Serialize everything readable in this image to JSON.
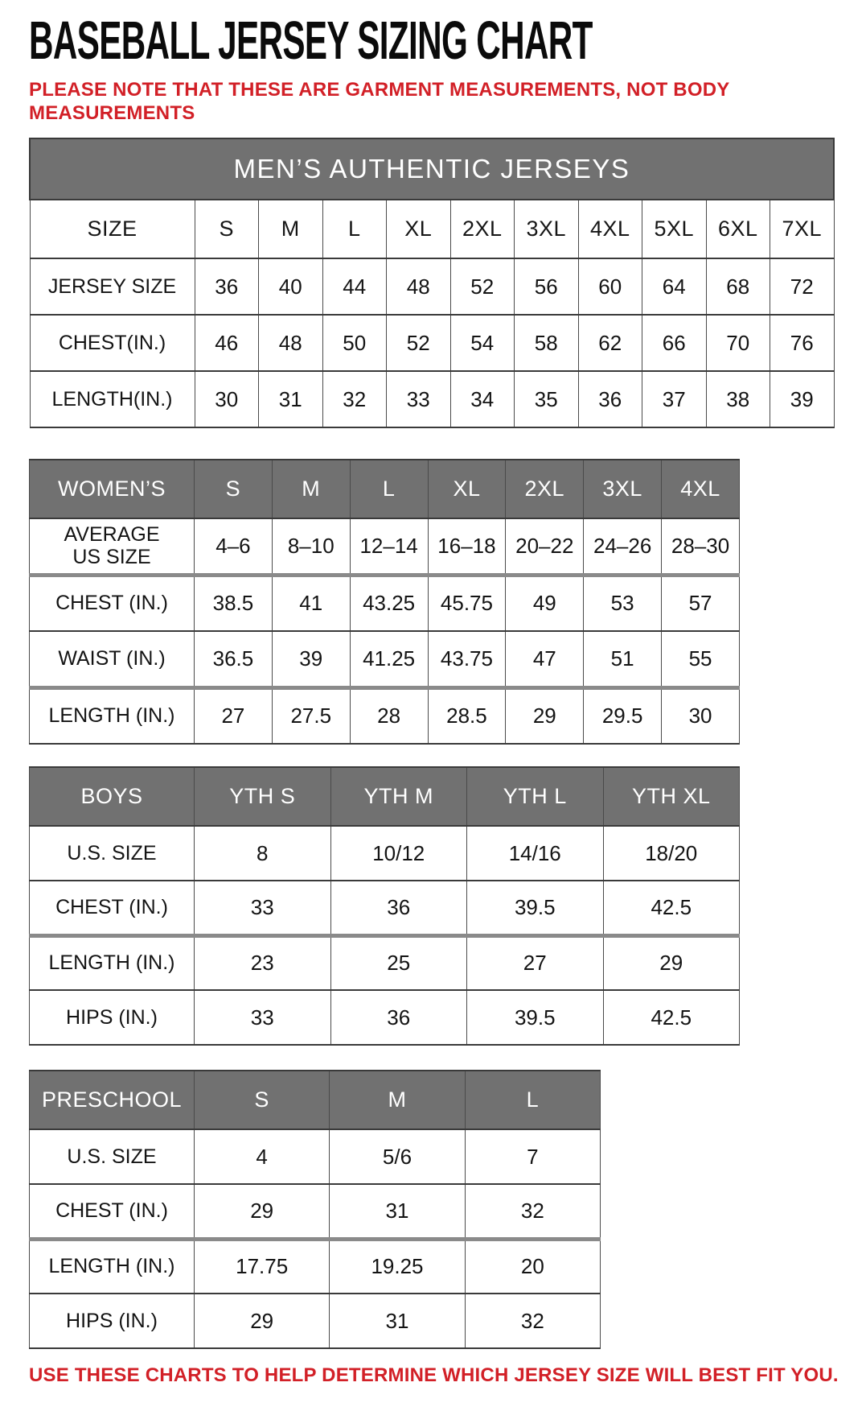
{
  "page": {
    "title": "BASEBALL JERSEY SIZING CHART",
    "note": "PLEASE NOTE THAT THESE ARE GARMENT MEASUREMENTS, NOT BODY MEASUREMENTS",
    "footer": "USE THESE CHARTS TO HELP DETERMINE WHICH JERSEY SIZE WILL BEST FIT YOU."
  },
  "colors": {
    "accent-red": "#d22027",
    "header-gray": "#717171",
    "text-black": "#161616",
    "border-dark": "#3a3a3a",
    "divider-gray": "#8a8a8a"
  },
  "tables": [
    {
      "id": "mens",
      "banner": "MEN’S AUTHENTIC JERSEYS",
      "header": {
        "label": "SIZE",
        "columns": [
          "S",
          "M",
          "L",
          "XL",
          "2XL",
          "3XL",
          "4XL",
          "5XL",
          "6XL",
          "7XL"
        ]
      },
      "rows": [
        {
          "label": "JERSEY SIZE",
          "values": [
            "36",
            "40",
            "44",
            "48",
            "52",
            "56",
            "60",
            "64",
            "68",
            "72"
          ]
        },
        {
          "label": "CHEST(IN.)",
          "values": [
            "46",
            "48",
            "50",
            "52",
            "54",
            "58",
            "62",
            "66",
            "70",
            "76"
          ]
        },
        {
          "label": "LENGTH(IN.)",
          "values": [
            "30",
            "31",
            "32",
            "33",
            "34",
            "35",
            "36",
            "37",
            "38",
            "39"
          ]
        }
      ]
    },
    {
      "id": "womens",
      "header": {
        "label": "WOMEN’S",
        "columns": [
          "S",
          "M",
          "L",
          "XL",
          "2XL",
          "3XL",
          "4XL"
        ]
      },
      "rows": [
        {
          "label": "AVERAGE\nUS SIZE",
          "values": [
            "4–6",
            "8–10",
            "12–14",
            "16–18",
            "20–22",
            "24–26",
            "28–30"
          ]
        },
        {
          "label": "CHEST (IN.)",
          "values": [
            "38.5",
            "41",
            "43.25",
            "45.75",
            "49",
            "53",
            "57"
          ]
        },
        {
          "label": "WAIST (IN.)",
          "values": [
            "36.5",
            "39",
            "41.25",
            "43.75",
            "47",
            "51",
            "55"
          ]
        },
        {
          "label": "LENGTH (IN.)",
          "values": [
            "27",
            "27.5",
            "28",
            "28.5",
            "29",
            "29.5",
            "30"
          ]
        }
      ]
    },
    {
      "id": "boys",
      "header": {
        "label": "BOYS",
        "columns": [
          "YTH S",
          "YTH M",
          "YTH L",
          "YTH XL"
        ]
      },
      "rows": [
        {
          "label": "U.S. SIZE",
          "values": [
            "8",
            "10/12",
            "14/16",
            "18/20"
          ]
        },
        {
          "label": "CHEST (IN.)",
          "values": [
            "33",
            "36",
            "39.5",
            "42.5"
          ]
        },
        {
          "label": "LENGTH (IN.)",
          "values": [
            "23",
            "25",
            "27",
            "29"
          ]
        },
        {
          "label": "HIPS (IN.)",
          "values": [
            "33",
            "36",
            "39.5",
            "42.5"
          ]
        }
      ]
    },
    {
      "id": "preschool",
      "header": {
        "label": "PRESCHOOL",
        "columns": [
          "S",
          "M",
          "L"
        ]
      },
      "rows": [
        {
          "label": "U.S. SIZE",
          "values": [
            "4",
            "5/6",
            "7"
          ]
        },
        {
          "label": "CHEST (IN.)",
          "values": [
            "29",
            "31",
            "32"
          ]
        },
        {
          "label": "LENGTH (IN.)",
          "values": [
            "17.75",
            "19.25",
            "20"
          ]
        },
        {
          "label": "HIPS (IN.)",
          "values": [
            "29",
            "31",
            "32"
          ]
        }
      ]
    }
  ]
}
